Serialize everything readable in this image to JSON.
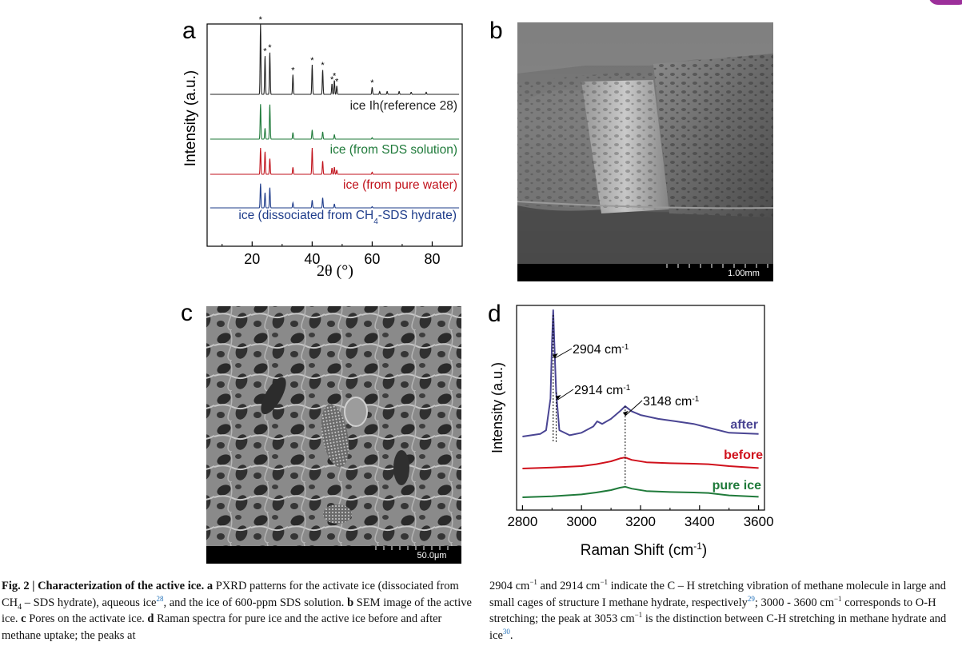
{
  "figure": {
    "panels": {
      "a": {
        "letter": "a"
      },
      "b": {
        "letter": "b",
        "scale_bar": "1.00mm"
      },
      "c": {
        "letter": "c",
        "scale_bar": "50.0μm"
      },
      "d": {
        "letter": "d"
      }
    },
    "caption_left": {
      "fig_label": "Fig. 2 | Characterization of the active ice.",
      "a_label": "a",
      "a_text_1": "PXRD patterns for the activate ice (dissociated from CH",
      "a_sub": "4",
      "a_text_2": " – SDS hydrate), aqueous ice",
      "a_ref": "28",
      "a_text_3": ", and the ice of 600-ppm SDS solution.",
      "b_label": "b",
      "b_text": "SEM image of the active ice.",
      "c_label": "c",
      "c_text": "Pores on the activate ice.",
      "d_label": "d",
      "d_text": "Raman spectra for pure ice and the active ice before and after methane uptake; the peaks at"
    },
    "caption_right": {
      "t1": "2904 cm",
      "t1_sup": "−1",
      "t2": " and 2914 cm",
      "t2_sup": "−1",
      "t3": " indicate the C – H stretching vibration of methane molecule in large and small cages of structure I methane hydrate, respectively",
      "ref1": "29",
      "t4": "; 3000 - 3600 cm",
      "t4_sup": "−1",
      "t5": " corresponds to O-H stretching; the peak at 3053 cm",
      "t5_sup": "−1",
      "t6": " is the distinction between C-H stretching in methane hydrate and ice",
      "ref2": "30",
      "t7": "."
    }
  },
  "chart_data": [
    {
      "panel": "a",
      "type": "line",
      "title": "",
      "xlabel": "2θ (°)",
      "ylabel": "Intensity (a.u.)",
      "xlim": [
        5,
        90
      ],
      "xticks": [
        20,
        40,
        60,
        80
      ],
      "series": [
        {
          "name": "ice Ih(reference 28)",
          "color": "#222222",
          "peaks": [
            [
              22.8,
              1.0
            ],
            [
              24.3,
              0.55
            ],
            [
              25.9,
              0.6
            ],
            [
              33.6,
              0.28
            ],
            [
              40.0,
              0.42
            ],
            [
              43.5,
              0.35
            ],
            [
              46.6,
              0.15
            ],
            [
              47.4,
              0.2
            ],
            [
              48.2,
              0.12
            ],
            [
              60.0,
              0.1
            ],
            [
              62.5,
              0.04
            ],
            [
              65.0,
              0.04
            ],
            [
              69.0,
              0.04
            ],
            [
              73.0,
              0.03
            ],
            [
              78.0,
              0.03
            ]
          ],
          "star_peaks": [
            22.8,
            24.3,
            25.9,
            33.6,
            40.0,
            43.5,
            46.6,
            47.4,
            48.2,
            60.0
          ]
        },
        {
          "name": "ice (from SDS solution)",
          "color": "#1f7a3a",
          "peaks": [
            [
              22.8,
              0.95
            ],
            [
              24.3,
              0.3
            ],
            [
              25.9,
              0.95
            ],
            [
              33.6,
              0.18
            ],
            [
              40.0,
              0.25
            ],
            [
              43.5,
              0.2
            ],
            [
              47.4,
              0.12
            ],
            [
              60.0,
              0.04
            ]
          ]
        },
        {
          "name": "ice (from pure water)",
          "color": "#c0121b",
          "peaks": [
            [
              22.8,
              0.75
            ],
            [
              24.3,
              0.65
            ],
            [
              25.9,
              0.45
            ],
            [
              33.6,
              0.2
            ],
            [
              40.0,
              0.75
            ],
            [
              43.5,
              0.38
            ],
            [
              46.6,
              0.18
            ],
            [
              47.4,
              0.2
            ],
            [
              48.2,
              0.12
            ],
            [
              60.0,
              0.06
            ]
          ]
        },
        {
          "name": "ice (dissociated from CH4-SDS hydrate)",
          "color": "#1e3c8a",
          "peaks": [
            [
              22.8,
              0.95
            ],
            [
              24.3,
              0.6
            ],
            [
              25.9,
              0.8
            ],
            [
              33.6,
              0.2
            ],
            [
              40.0,
              0.3
            ],
            [
              43.5,
              0.4
            ],
            [
              47.4,
              0.15
            ],
            [
              60.0,
              0.05
            ]
          ]
        }
      ]
    },
    {
      "panel": "d",
      "type": "line",
      "title": "",
      "xlabel": "Raman Shift (cm",
      "xlabel_sup": "-1",
      "xlabel_end": ")",
      "ylabel": "Intensity (a.u.)",
      "xlim": [
        2780,
        3620
      ],
      "xticks": [
        2800,
        3000,
        3200,
        3400,
        3600
      ],
      "annotations": [
        "2904 cm",
        "2914 cm",
        "3148 cm"
      ],
      "annotation_sup": "-1",
      "series": [
        {
          "name": "after",
          "color": "#4a4593",
          "x": [
            2800,
            2860,
            2880,
            2895,
            2900,
            2904,
            2910,
            2914,
            2925,
            2960,
            3000,
            3040,
            3053,
            3070,
            3100,
            3130,
            3148,
            3170,
            3200,
            3260,
            3320,
            3380,
            3430,
            3500,
            3600
          ],
          "y": [
            0.0,
            0.02,
            0.05,
            0.3,
            0.75,
            1.0,
            0.6,
            0.35,
            0.05,
            0.01,
            0.03,
            0.08,
            0.12,
            0.1,
            0.14,
            0.2,
            0.24,
            0.2,
            0.17,
            0.14,
            0.12,
            0.1,
            0.07,
            0.03,
            0.02
          ]
        },
        {
          "name": "before",
          "color": "#d0111c",
          "x": [
            2800,
            2900,
            3000,
            3050,
            3100,
            3130,
            3148,
            3170,
            3220,
            3300,
            3380,
            3430,
            3500,
            3600
          ],
          "y": [
            0.0,
            0.02,
            0.05,
            0.09,
            0.15,
            0.21,
            0.23,
            0.18,
            0.13,
            0.11,
            0.1,
            0.09,
            0.05,
            0.01
          ]
        },
        {
          "name": "pure ice",
          "color": "#1f7a3a",
          "x": [
            2800,
            2900,
            3000,
            3050,
            3100,
            3130,
            3148,
            3170,
            3220,
            3300,
            3380,
            3430,
            3500,
            3600
          ],
          "y": [
            0.0,
            0.02,
            0.06,
            0.1,
            0.15,
            0.2,
            0.22,
            0.18,
            0.13,
            0.11,
            0.1,
            0.09,
            0.04,
            0.01
          ]
        }
      ]
    }
  ]
}
